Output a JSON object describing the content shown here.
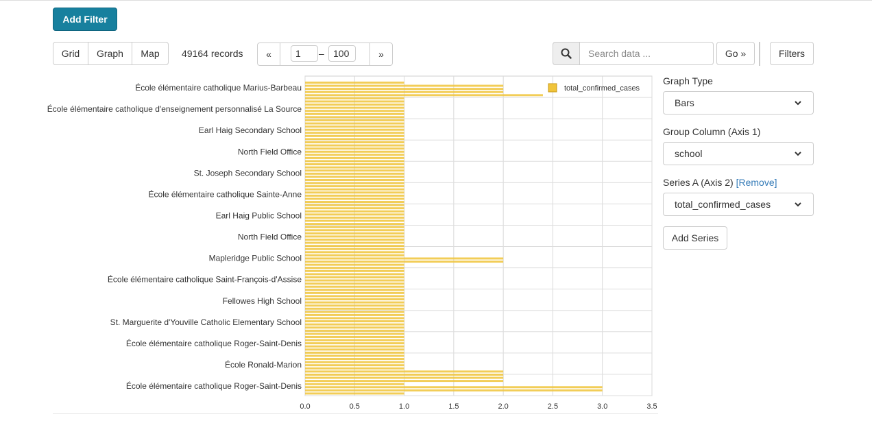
{
  "toolbar": {
    "add_filter_label": "Add Filter",
    "view_tabs": [
      "Grid",
      "Graph",
      "Map"
    ],
    "records_text": "49164 records",
    "pager": {
      "prev_label": "«",
      "next_label": "»",
      "from": "1",
      "separator": "–",
      "to": "100"
    },
    "search_placeholder": "Search data ...",
    "go_label": "Go »",
    "filters_label": "Filters"
  },
  "side_panel": {
    "graph_type_label": "Graph Type",
    "graph_type_value": "Bars",
    "group_column_label": "Group Column (Axis 1)",
    "group_column_value": "school",
    "series_a_label": "Series A (Axis 2) ",
    "series_a_remove": "[Remove]",
    "series_a_value": "total_confirmed_cases",
    "add_series_label": "Add Series"
  },
  "chart_data": {
    "type": "bar",
    "orientation": "horizontal",
    "legend": "total_confirmed_cases",
    "bar_color": "#f0c43a",
    "xlim": [
      0,
      3.5
    ],
    "x_ticks": [
      "0.0",
      "0.5",
      "1.0",
      "1.5",
      "2.0",
      "2.5",
      "3.0",
      "3.5"
    ],
    "category_labels": [
      "École élémentaire catholique Marius-Barbeau",
      "École élémentaire catholique d'enseignement personnalisé La Source",
      "Earl Haig Secondary School",
      "North Field Office",
      "St. Joseph Secondary School",
      "École élémentaire catholique Sainte-Anne",
      "Earl Haig Public School",
      "North Field Office",
      "Mapleridge Public School",
      "École élémentaire catholique Saint-François-d'Assise",
      "Fellowes High School",
      "St. Marguerite d'Youville Catholic Elementary School",
      "École élémentaire catholique Roger-Saint-Denis",
      "École Ronald-Marion",
      "École élémentaire catholique Roger-Saint-Denis"
    ],
    "values": [
      1,
      2,
      2,
      2,
      2.4,
      1,
      1,
      1,
      1,
      1,
      1,
      1,
      1,
      1,
      1,
      1,
      1,
      1,
      1,
      1,
      1,
      1,
      1,
      1,
      1,
      1,
      1,
      1,
      1,
      1,
      1,
      1,
      1,
      1,
      1,
      1,
      1,
      1,
      1,
      1,
      1,
      1,
      1,
      1,
      1,
      1,
      1,
      1,
      1,
      1,
      1,
      1,
      1,
      1,
      1,
      1,
      2,
      2,
      1,
      1,
      1,
      1,
      1,
      1,
      1,
      1,
      1,
      1,
      1,
      1,
      1,
      1,
      1,
      1,
      1,
      1,
      1,
      1,
      1,
      1,
      1,
      1,
      1,
      1,
      1,
      1,
      1,
      1,
      1,
      1,
      1,
      1,
      2,
      2,
      2,
      2,
      1,
      3,
      3,
      1
    ]
  }
}
